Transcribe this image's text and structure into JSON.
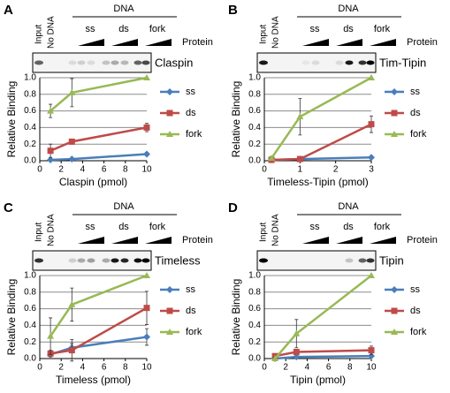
{
  "panels": [
    {
      "letter": "A",
      "input": "Input",
      "no_dna": "No DNA",
      "dna": "DNA",
      "groups": [
        "ss",
        "ds",
        "fork"
      ],
      "protein": "Protein",
      "blot": "Claspin"
    },
    {
      "letter": "B",
      "input": "Input",
      "no_dna": "No DNA",
      "dna": "DNA",
      "groups": [
        "ss",
        "ds",
        "fork"
      ],
      "protein": "Protein",
      "blot": "Tim-Tipin"
    },
    {
      "letter": "C",
      "input": "Input",
      "no_dna": "No DNA",
      "dna": "DNA",
      "groups": [
        "ss",
        "ds",
        "fork"
      ],
      "protein": "Protein",
      "blot": "Timeless"
    },
    {
      "letter": "D",
      "input": "Input",
      "no_dna": "No DNA",
      "dna": "DNA",
      "groups": [
        "ss",
        "ds",
        "fork"
      ],
      "protein": "Protein",
      "blot": "Tipin"
    }
  ],
  "chart_data": [
    {
      "type": "line",
      "x_label": "Claspin (pmol)",
      "y_label": "Relative Binding",
      "x": [
        1,
        3,
        10
      ],
      "xlim": [
        0,
        10
      ],
      "xticks": [
        0,
        2,
        4,
        6,
        8,
        10
      ],
      "ylim": [
        0,
        1
      ],
      "yticks": [
        {
          "value": 0,
          "label": "0.0"
        },
        0.2,
        0.4,
        0.6,
        0.8,
        {
          "value": 1,
          "label": "1.0"
        }
      ],
      "grid": true,
      "series": [
        {
          "name": "ss",
          "color": "#4a7ebb",
          "values": [
            0.01,
            0.02,
            0.08
          ],
          "errors": [
            0.01,
            0.01,
            0.02
          ]
        },
        {
          "name": "ds",
          "color": "#be4b48",
          "values": [
            0.12,
            0.23,
            0.4
          ],
          "errors": [
            0.08,
            0.02,
            0.05
          ]
        },
        {
          "name": "fork",
          "color": "#98b954",
          "values": [
            0.6,
            0.82,
            1.0
          ],
          "errors": [
            0.08,
            0.17,
            0
          ]
        }
      ]
    },
    {
      "type": "line",
      "x_label": "Timeless-Tipin (pmol)",
      "y_label": "Relative Binding",
      "x": [
        0.2,
        1,
        3
      ],
      "xlim": [
        0,
        3
      ],
      "xticks": [
        0,
        1,
        2,
        3
      ],
      "ylim": [
        0,
        1
      ],
      "yticks": [
        {
          "value": 0,
          "label": "0.0"
        },
        0.2,
        0.4,
        0.6,
        0.8,
        {
          "value": 1,
          "label": "1.0"
        }
      ],
      "grid": true,
      "series": [
        {
          "name": "ss",
          "color": "#4a7ebb",
          "values": [
            0.01,
            0.02,
            0.04
          ],
          "errors": [
            0.01,
            0.01,
            0.01
          ]
        },
        {
          "name": "ds",
          "color": "#be4b48",
          "values": [
            0.01,
            0.02,
            0.44
          ],
          "errors": [
            0.01,
            0.01,
            0.1
          ]
        },
        {
          "name": "fork",
          "color": "#98b954",
          "values": [
            0.03,
            0.53,
            1.0
          ],
          "errors": [
            0.02,
            0.22,
            0
          ]
        }
      ]
    },
    {
      "type": "line",
      "x_label": "Timeless (pmol)",
      "y_label": "Relative Binding",
      "x": [
        1,
        3,
        10
      ],
      "xlim": [
        0,
        10
      ],
      "xticks": [
        0,
        2,
        4,
        6,
        8,
        10
      ],
      "ylim": [
        0,
        1
      ],
      "yticks": [
        {
          "value": 0,
          "label": "0.0"
        },
        0.2,
        0.4,
        0.6,
        0.8,
        {
          "value": 1,
          "label": "1.0"
        }
      ],
      "grid": true,
      "series": [
        {
          "name": "ss",
          "color": "#4a7ebb",
          "values": [
            0.05,
            0.13,
            0.26
          ],
          "errors": [
            0.03,
            0.05,
            0.1
          ]
        },
        {
          "name": "ds",
          "color": "#be4b48",
          "values": [
            0.06,
            0.1,
            0.61
          ],
          "errors": [
            0.04,
            0.13,
            0.2
          ]
        },
        {
          "name": "fork",
          "color": "#98b954",
          "values": [
            0.27,
            0.65,
            1.0
          ],
          "errors": [
            0.22,
            0.2,
            0
          ]
        }
      ]
    },
    {
      "type": "line",
      "x_label": "Tipin (pmol)",
      "y_label": "Relative Binding",
      "x": [
        1,
        3,
        10
      ],
      "xlim": [
        0,
        10
      ],
      "xticks": [
        0,
        2,
        4,
        6,
        8,
        10
      ],
      "ylim": [
        0,
        1
      ],
      "yticks": [
        {
          "value": 0,
          "label": "0.0"
        },
        0.2,
        0.4,
        0.6,
        0.8,
        {
          "value": 1,
          "label": "1.0"
        }
      ],
      "grid": true,
      "series": [
        {
          "name": "ss",
          "color": "#4a7ebb",
          "values": [
            0.0,
            0.02,
            0.03
          ],
          "errors": [
            0.01,
            0.01,
            0.01
          ]
        },
        {
          "name": "ds",
          "color": "#be4b48",
          "values": [
            0.03,
            0.08,
            0.1
          ],
          "errors": [
            0.03,
            0.03,
            0.05
          ]
        },
        {
          "name": "fork",
          "color": "#98b954",
          "values": [
            0.0,
            0.3,
            1.0
          ],
          "errors": [
            0.02,
            0.17,
            0
          ]
        }
      ]
    }
  ]
}
